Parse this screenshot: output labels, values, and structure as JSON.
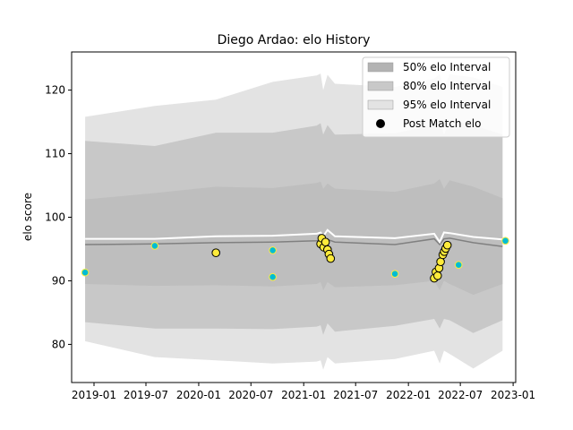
{
  "chart_data": {
    "type": "line",
    "title": "Diego Ardao: elo History",
    "xlabel": "",
    "ylabel": "elo score",
    "xlim": [
      "2018-10-15",
      "2023-01-10"
    ],
    "ylim": [
      74,
      126
    ],
    "xticks": [
      "2019-01",
      "2019-07",
      "2020-01",
      "2020-07",
      "2021-01",
      "2021-07",
      "2022-01",
      "2022-07",
      "2023-01"
    ],
    "yticks": [
      80,
      90,
      100,
      110,
      120
    ],
    "grid": false,
    "legend_position": "top-right",
    "legend": [
      {
        "label": "50% elo Interval",
        "kind": "patch",
        "color": "#b3b3b3"
      },
      {
        "label": "80% elo Interval",
        "kind": "patch",
        "color": "#c8c8c8"
      },
      {
        "label": "95% elo Interval",
        "kind": "patch",
        "color": "#e3e3e3"
      },
      {
        "label": "Post Match elo",
        "kind": "marker",
        "color": "#000000"
      }
    ],
    "colors": {
      "band95": "#e3e3e3",
      "band80": "#c8c8c8",
      "band50": "#bebebe",
      "median_line": "#808080",
      "mean_line": "#ffffff",
      "match_point_fill": "#00bcd4",
      "match_point_edge": "#ffeb3b",
      "history_point_fill": "#ffeb3b",
      "history_point_edge": "#000000"
    },
    "bands": {
      "x": [
        "2018-12-01",
        "2019-08-01",
        "2020-03-01",
        "2020-09-15",
        "2021-02-15",
        "2021-03-01",
        "2021-03-10",
        "2021-03-25",
        "2021-04-20",
        "2021-11-15",
        "2022-04-01",
        "2022-04-20",
        "2022-05-05",
        "2022-05-25",
        "2022-08-15",
        "2022-11-25"
      ],
      "lower95": [
        80.5,
        78.0,
        77.5,
        77.0,
        77.3,
        77.5,
        76.0,
        78.0,
        77.0,
        77.7,
        79.0,
        77.0,
        79.0,
        78.5,
        76.2,
        79.0
      ],
      "upper95": [
        115.8,
        117.5,
        118.5,
        121.3,
        122.3,
        122.6,
        120.0,
        122.4,
        121.0,
        120.5,
        121.8,
        122.5,
        120.5,
        122.5,
        122.0,
        120.5
      ],
      "lower80": [
        83.5,
        82.5,
        82.5,
        82.4,
        82.8,
        83.0,
        81.5,
        83.3,
        82.0,
        82.9,
        84.0,
        82.5,
        84.0,
        83.8,
        81.8,
        83.8
      ],
      "upper80": [
        112.0,
        111.2,
        113.3,
        113.3,
        114.4,
        114.8,
        113.0,
        114.5,
        113.0,
        113.2,
        114.5,
        115.2,
        113.0,
        115.2,
        114.5,
        113.0
      ],
      "lower50": [
        89.5,
        89.2,
        89.3,
        89.1,
        89.5,
        89.8,
        88.5,
        89.8,
        89.0,
        89.3,
        90.0,
        88.5,
        90.0,
        89.5,
        87.8,
        89.5
      ],
      "upper50": [
        102.8,
        103.8,
        104.8,
        104.6,
        105.4,
        105.6,
        104.5,
        105.3,
        104.5,
        104.0,
        105.3,
        106.0,
        104.5,
        105.8,
        104.8,
        103.0
      ]
    },
    "median_line": {
      "x": [
        "2018-12-01",
        "2019-08-01",
        "2020-03-01",
        "2020-09-15",
        "2021-02-15",
        "2021-03-01",
        "2021-03-10",
        "2021-03-25",
        "2021-04-20",
        "2021-11-15",
        "2022-04-01",
        "2022-04-20",
        "2022-05-05",
        "2022-05-25",
        "2022-08-15",
        "2022-11-25"
      ],
      "y": [
        95.7,
        95.8,
        96.0,
        96.1,
        96.3,
        96.4,
        96.0,
        96.5,
        96.1,
        95.7,
        96.6,
        95.7,
        96.6,
        96.7,
        96.0,
        95.4
      ]
    },
    "mean_line": {
      "x": [
        "2018-12-01",
        "2019-08-01",
        "2020-03-01",
        "2020-09-15",
        "2021-02-15",
        "2021-03-01",
        "2021-03-10",
        "2021-03-25",
        "2021-04-20",
        "2021-11-15",
        "2022-04-01",
        "2022-04-20",
        "2022-05-05",
        "2022-05-25",
        "2022-08-15",
        "2022-11-25"
      ],
      "y": [
        96.6,
        96.6,
        97.0,
        97.1,
        97.4,
        97.6,
        97.0,
        98.0,
        97.0,
        96.7,
        97.4,
        96.1,
        97.6,
        97.5,
        96.9,
        96.5
      ]
    },
    "series": [
      {
        "name": "Post Match elo",
        "points": [
          {
            "x": "2018-12-01",
            "y": 91.3,
            "style": "match"
          },
          {
            "x": "2019-08-01",
            "y": 95.5,
            "style": "match"
          },
          {
            "x": "2020-03-01",
            "y": 94.4,
            "style": "history"
          },
          {
            "x": "2020-09-15",
            "y": 94.8,
            "style": "match"
          },
          {
            "x": "2020-09-15",
            "y": 90.6,
            "style": "match"
          },
          {
            "x": "2021-03-01",
            "y": 95.8,
            "style": "history"
          },
          {
            "x": "2021-03-05",
            "y": 96.7,
            "style": "history"
          },
          {
            "x": "2021-03-12",
            "y": 95.3,
            "style": "history"
          },
          {
            "x": "2021-03-18",
            "y": 96.1,
            "style": "history"
          },
          {
            "x": "2021-03-25",
            "y": 94.9,
            "style": "history"
          },
          {
            "x": "2021-03-30",
            "y": 94.2,
            "style": "history"
          },
          {
            "x": "2021-04-05",
            "y": 93.5,
            "style": "history"
          },
          {
            "x": "2021-11-15",
            "y": 91.1,
            "style": "match"
          },
          {
            "x": "2022-04-01",
            "y": 90.4,
            "style": "history"
          },
          {
            "x": "2022-04-07",
            "y": 91.4,
            "style": "history"
          },
          {
            "x": "2022-04-13",
            "y": 90.8,
            "style": "history"
          },
          {
            "x": "2022-04-18",
            "y": 92.0,
            "style": "history"
          },
          {
            "x": "2022-04-23",
            "y": 93.0,
            "style": "history"
          },
          {
            "x": "2022-05-01",
            "y": 94.1,
            "style": "history"
          },
          {
            "x": "2022-05-06",
            "y": 94.6,
            "style": "history"
          },
          {
            "x": "2022-05-11",
            "y": 95.1,
            "style": "history"
          },
          {
            "x": "2022-05-17",
            "y": 95.6,
            "style": "history"
          },
          {
            "x": "2022-06-25",
            "y": 92.5,
            "style": "match"
          },
          {
            "x": "2022-12-05",
            "y": 96.3,
            "style": "match"
          }
        ]
      }
    ]
  }
}
